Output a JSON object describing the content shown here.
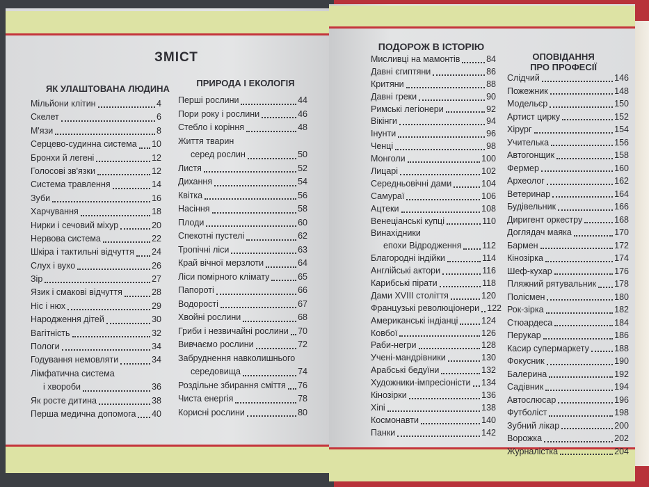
{
  "title": "ЗМІСТ",
  "colors": {
    "band": "#dde3a4",
    "accent_line": "#c4343b",
    "cover": "#b8323a"
  },
  "sections": [
    {
      "heading": "ЯК УЛАШТОВАНА ЛЮДИНА",
      "entries": [
        {
          "title": "Мільйони клітин",
          "page": "4"
        },
        {
          "title": "Скелет",
          "page": "6"
        },
        {
          "title": "М'язи",
          "page": "8"
        },
        {
          "title": "Серцево-судинна система",
          "page": "10"
        },
        {
          "title": "Бронхи й легені",
          "page": "12"
        },
        {
          "title": "Голосові зв'язки",
          "page": "12"
        },
        {
          "title": "Система травлення",
          "page": "14"
        },
        {
          "title": "Зуби",
          "page": "16"
        },
        {
          "title": "Харчування",
          "page": "18"
        },
        {
          "title": "Нирки і сечовий міхур",
          "page": "20"
        },
        {
          "title": "Нервова система",
          "page": "22"
        },
        {
          "title": "Шкіра і тактильні відчуття",
          "page": "24"
        },
        {
          "title": "Слух і вухо",
          "page": "26"
        },
        {
          "title": "Зір",
          "page": "27"
        },
        {
          "title": "Язик і смакові відчуття",
          "page": "28"
        },
        {
          "title": "Ніс і нюх",
          "page": "29"
        },
        {
          "title": "Народження дітей",
          "page": "30"
        },
        {
          "title": "Вагітність",
          "page": "32"
        },
        {
          "title": "Пологи",
          "page": "34"
        },
        {
          "title": "Годування немовляти",
          "page": "34"
        },
        {
          "title": "Лімфатична система",
          "cont": "і хвороби",
          "page": "36"
        },
        {
          "title": "Як росте дитина",
          "page": "38"
        },
        {
          "title": "Перша медична допомога",
          "page": "40"
        }
      ]
    },
    {
      "heading": "ПРИРОДА І ЕКОЛОГІЯ",
      "entries": [
        {
          "title": "Перші рослини",
          "page": "44"
        },
        {
          "title": "Пори року і рослини",
          "page": "46"
        },
        {
          "title": "Стебло і коріння",
          "page": "48"
        },
        {
          "title": "Життя тварин",
          "cont": "серед рослин",
          "page": "50"
        },
        {
          "title": "Листя",
          "page": "52"
        },
        {
          "title": "Дихання",
          "page": "54"
        },
        {
          "title": "Квітка",
          "page": "56"
        },
        {
          "title": "Насіння",
          "page": "58"
        },
        {
          "title": "Плоди",
          "page": "60"
        },
        {
          "title": "Спекотні пустелі",
          "page": "62"
        },
        {
          "title": "Тропічні ліси",
          "page": "63"
        },
        {
          "title": "Край вічної мерзлоти",
          "page": "64"
        },
        {
          "title": "Ліси помірного клімату",
          "page": "65"
        },
        {
          "title": "Папороті",
          "page": "66"
        },
        {
          "title": "Водорості",
          "page": "67"
        },
        {
          "title": "Хвойні рослини",
          "page": "68"
        },
        {
          "title": "Гриби і незвичайні рослини",
          "page": "70"
        },
        {
          "title": "Вивчаємо рослини",
          "page": "72"
        },
        {
          "title": "Забруднення навколишнього",
          "cont": "середовища",
          "page": "74"
        },
        {
          "title": "Роздільне збирання сміття",
          "page": "76"
        },
        {
          "title": "Чиста енергія",
          "page": "78"
        },
        {
          "title": "Корисні рослини",
          "page": "80"
        }
      ]
    },
    {
      "heading": "ПОДОРОЖ В ІСТОРІЮ",
      "entries": [
        {
          "title": "Мисливці на мамонтів",
          "page": "84"
        },
        {
          "title": "Давні єгиптяни",
          "page": "86"
        },
        {
          "title": "Критяни",
          "page": "88"
        },
        {
          "title": "Давні греки",
          "page": "90"
        },
        {
          "title": "Римські легіонери",
          "page": "92"
        },
        {
          "title": "Вікінги",
          "page": "94"
        },
        {
          "title": "Інунти",
          "page": "96"
        },
        {
          "title": "Ченці",
          "page": "98"
        },
        {
          "title": "Монголи",
          "page": "100"
        },
        {
          "title": "Лицарі",
          "page": "102"
        },
        {
          "title": "Середньовічні дами",
          "page": "104"
        },
        {
          "title": "Самураї",
          "page": "106"
        },
        {
          "title": "Ацтеки",
          "page": "108"
        },
        {
          "title": "Венеціанські купці",
          "page": "110"
        },
        {
          "title": "Винахідники",
          "cont": "епохи Відродження",
          "page": "112"
        },
        {
          "title": "Благородні індійки",
          "page": "114"
        },
        {
          "title": "Англійські актори",
          "page": "116"
        },
        {
          "title": "Карибські пірати",
          "page": "118"
        },
        {
          "title": "Дами XVIII століття",
          "page": "120"
        },
        {
          "title": "Французькі революціонери",
          "page": "122"
        },
        {
          "title": "Американські індіанці",
          "page": "124"
        },
        {
          "title": "Ковбої",
          "page": "126"
        },
        {
          "title": "Раби-негри",
          "page": "128"
        },
        {
          "title": "Учені-мандрівники",
          "page": "130"
        },
        {
          "title": "Арабські бедуїни",
          "page": "132"
        },
        {
          "title": "Художники-імпресіоністи",
          "page": "134"
        },
        {
          "title": "Кінозірки",
          "page": "136"
        },
        {
          "title": "Хіпі",
          "page": "138"
        },
        {
          "title": "Космонавти",
          "page": "140"
        },
        {
          "title": "Панки",
          "page": "142"
        }
      ]
    },
    {
      "heading": "ОПОВІДАННЯ\nПРО ПРОФЕСІЇ",
      "entries": [
        {
          "title": "Слідчий",
          "page": "146"
        },
        {
          "title": "Пожежник",
          "page": "148"
        },
        {
          "title": "Модельєр",
          "page": "150"
        },
        {
          "title": "Артист цирку",
          "page": "152"
        },
        {
          "title": "Хірург",
          "page": "154"
        },
        {
          "title": "Учителька",
          "page": "156"
        },
        {
          "title": "Автогонщик",
          "page": "158"
        },
        {
          "title": "Фермер",
          "page": "160"
        },
        {
          "title": "Археолог",
          "page": "162"
        },
        {
          "title": "Ветеринар",
          "page": "164"
        },
        {
          "title": "Будівельник",
          "page": "166"
        },
        {
          "title": "Диригент оркестру",
          "page": "168"
        },
        {
          "title": "Доглядач маяка",
          "page": "170"
        },
        {
          "title": "Бармен",
          "page": "172"
        },
        {
          "title": "Кінозірка",
          "page": "174"
        },
        {
          "title": "Шеф-кухар",
          "page": "176"
        },
        {
          "title": "Пляжний рятувальник",
          "page": "178"
        },
        {
          "title": "Полісмен",
          "page": "180"
        },
        {
          "title": "Рок-зірка",
          "page": "182"
        },
        {
          "title": "Стюардеса",
          "page": "184"
        },
        {
          "title": "Перукар",
          "page": "186"
        },
        {
          "title": "Касир супермаркету",
          "page": "188"
        },
        {
          "title": "Фокусник",
          "page": "190"
        },
        {
          "title": "Балерина",
          "page": "192"
        },
        {
          "title": "Садівник",
          "page": "194"
        },
        {
          "title": "Автослюсар",
          "page": "196"
        },
        {
          "title": "Футболіст",
          "page": "198"
        },
        {
          "title": "Зубний лікар",
          "page": "200"
        },
        {
          "title": "Ворожка",
          "page": "202"
        },
        {
          "title": "Журналістка",
          "page": "204"
        }
      ]
    }
  ]
}
